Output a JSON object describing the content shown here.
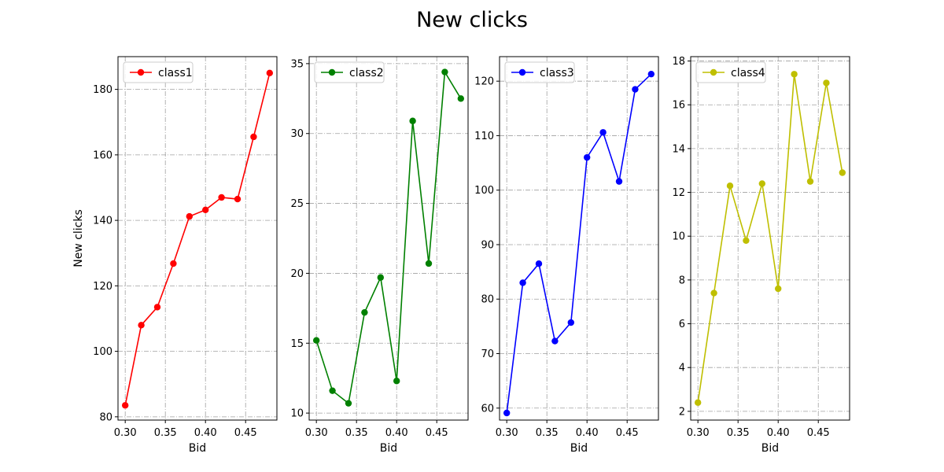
{
  "title": "New clicks",
  "chart_data": [
    {
      "type": "line",
      "series": [
        {
          "name": "class1",
          "color": "#ff0000",
          "marker": "circle"
        }
      ],
      "x": [
        0.3,
        0.32,
        0.34,
        0.36,
        0.38,
        0.4,
        0.42,
        0.44,
        0.46,
        0.48
      ],
      "y": [
        83.5,
        108.0,
        113.5,
        126.8,
        141.2,
        143.2,
        147.0,
        146.5,
        165.5,
        185.0
      ],
      "xlabel": "Bid",
      "ylabel": "New clicks",
      "xlim": [
        0.291,
        0.489
      ],
      "ylim": [
        79.0,
        190.0
      ],
      "xticks": [
        0.3,
        0.35,
        0.4,
        0.45
      ],
      "xtick_labels": [
        "0.30",
        "0.35",
        "0.40",
        "0.45"
      ],
      "yticks": [
        80,
        100,
        120,
        140,
        160,
        180
      ],
      "ytick_labels": [
        "80",
        "100",
        "120",
        "140",
        "160",
        "180"
      ],
      "grid": true,
      "legend_position": "upper left"
    },
    {
      "type": "line",
      "series": [
        {
          "name": "class2",
          "color": "#008000",
          "marker": "circle"
        }
      ],
      "x": [
        0.3,
        0.32,
        0.34,
        0.36,
        0.38,
        0.4,
        0.42,
        0.44,
        0.46,
        0.48
      ],
      "y": [
        15.2,
        11.6,
        10.7,
        17.2,
        19.7,
        12.3,
        30.9,
        20.7,
        34.4,
        32.5
      ],
      "xlabel": "Bid",
      "ylabel": "",
      "xlim": [
        0.291,
        0.489
      ],
      "ylim": [
        9.5,
        35.5
      ],
      "xticks": [
        0.3,
        0.35,
        0.4,
        0.45
      ],
      "xtick_labels": [
        "0.30",
        "0.35",
        "0.40",
        "0.45"
      ],
      "yticks": [
        10,
        15,
        20,
        25,
        30,
        35
      ],
      "ytick_labels": [
        "10",
        "15",
        "20",
        "25",
        "30",
        "35"
      ],
      "grid": true,
      "legend_position": "upper left"
    },
    {
      "type": "line",
      "series": [
        {
          "name": "class3",
          "color": "#0000ff",
          "marker": "circle"
        }
      ],
      "x": [
        0.3,
        0.32,
        0.34,
        0.36,
        0.38,
        0.4,
        0.42,
        0.44,
        0.46,
        0.48
      ],
      "y": [
        59.1,
        83.0,
        86.5,
        72.3,
        75.7,
        106.0,
        110.6,
        101.6,
        118.5,
        121.3
      ],
      "xlabel": "Bid",
      "ylabel": "",
      "xlim": [
        0.291,
        0.489
      ],
      "ylim": [
        57.8,
        124.5
      ],
      "xticks": [
        0.3,
        0.35,
        0.4,
        0.45
      ],
      "xtick_labels": [
        "0.30",
        "0.35",
        "0.40",
        "0.45"
      ],
      "yticks": [
        60,
        70,
        80,
        90,
        100,
        110,
        120
      ],
      "ytick_labels": [
        "60",
        "70",
        "80",
        "90",
        "100",
        "110",
        "120"
      ],
      "grid": true,
      "legend_position": "upper left"
    },
    {
      "type": "line",
      "series": [
        {
          "name": "class4",
          "color": "#bfbf00",
          "marker": "circle"
        }
      ],
      "x": [
        0.3,
        0.32,
        0.34,
        0.36,
        0.38,
        0.4,
        0.42,
        0.44,
        0.46,
        0.48
      ],
      "y": [
        2.4,
        7.4,
        12.3,
        9.8,
        12.4,
        7.6,
        17.4,
        12.5,
        17.0,
        12.9
      ],
      "xlabel": "Bid",
      "ylabel": "",
      "xlim": [
        0.291,
        0.489
      ],
      "ylim": [
        1.6,
        18.2
      ],
      "xticks": [
        0.3,
        0.35,
        0.4,
        0.45
      ],
      "xtick_labels": [
        "0.30",
        "0.35",
        "0.40",
        "0.45"
      ],
      "yticks": [
        2,
        4,
        6,
        8,
        10,
        12,
        14,
        16,
        18
      ],
      "ytick_labels": [
        "2",
        "4",
        "6",
        "8",
        "10",
        "12",
        "14",
        "16",
        "18"
      ],
      "grid": true,
      "legend_position": "upper left"
    }
  ]
}
